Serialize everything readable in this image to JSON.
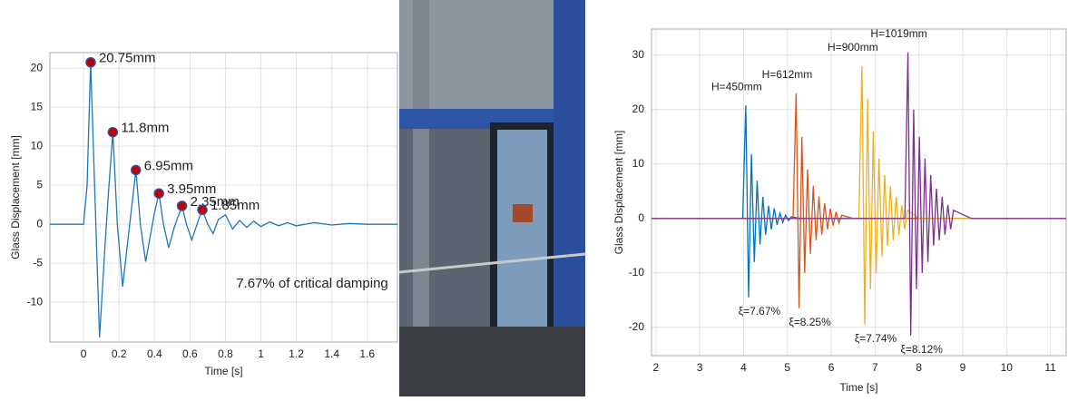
{
  "chart_data": [
    {
      "type": "line",
      "color": "#1f77b4",
      "x": [
        -0.19,
        0,
        0.02,
        0.04,
        0.065,
        0.09,
        0.12,
        0.14,
        0.165,
        0.19,
        0.22,
        0.25,
        0.27,
        0.295,
        0.32,
        0.35,
        0.38,
        0.4,
        0.425,
        0.45,
        0.48,
        0.51,
        0.53,
        0.555,
        0.58,
        0.61,
        0.64,
        0.655,
        0.67,
        0.7,
        0.73,
        0.76,
        0.8,
        0.84,
        0.88,
        0.92,
        0.96,
        1.0,
        1.05,
        1.1,
        1.15,
        1.2,
        1.3,
        1.4,
        1.5,
        1.6,
        1.77
      ],
      "values": [
        0,
        0,
        5,
        20.75,
        3,
        -14.5,
        -3,
        4,
        11.8,
        0,
        -8,
        -2,
        2,
        6.95,
        0,
        -4.8,
        -1,
        1.5,
        3.95,
        0,
        -3,
        -0.5,
        0.8,
        2.35,
        0,
        -2,
        0,
        1,
        1.85,
        0,
        -1.2,
        0.6,
        1.2,
        -0.6,
        0.5,
        -0.4,
        0.4,
        -0.3,
        0.3,
        -0.2,
        0.2,
        -0.2,
        0.2,
        -0.1,
        0.1,
        0,
        0
      ],
      "markers": {
        "color": "#c00000",
        "x": [
          0.04,
          0.165,
          0.295,
          0.425,
          0.555,
          0.67
        ],
        "values": [
          20.75,
          11.8,
          6.95,
          3.95,
          2.35,
          1.85
        ],
        "value_labels": [
          "20.75mm",
          "11.8mm",
          "6.95mm",
          "3.95mm",
          "2.35mm",
          "1.85mm"
        ]
      },
      "annotation": "7.67% of critical damping",
      "xlabel": "Time [s]",
      "ylabel": "Glass Displacement [mm]",
      "xlim": [
        -0.19,
        1.77
      ],
      "ylim": [
        -15.1,
        22
      ],
      "xticks": [
        0,
        0.2,
        0.4,
        0.6,
        0.8,
        1,
        1.2,
        1.4,
        1.6
      ],
      "yticks": [
        -10,
        -5,
        0,
        5,
        10,
        15,
        20
      ],
      "grid": true
    },
    {
      "type": "line",
      "xlabel": "Time [s]",
      "ylabel": "Glass Displacement [mm]",
      "xlim": [
        1.9,
        11.36
      ],
      "ylim": [
        -25.2,
        34.8
      ],
      "xticks": [
        2,
        3,
        4,
        5,
        6,
        7,
        8,
        9,
        10,
        11
      ],
      "yticks": [
        -20,
        -10,
        0,
        10,
        20,
        30
      ],
      "grid": true,
      "series": [
        {
          "name": "H=450mm",
          "damping_label": "ξ=7.67%",
          "color": "#0072bd",
          "x": [
            1.9,
            3.98,
            4.05,
            4.115,
            4.18,
            4.245,
            4.31,
            4.375,
            4.44,
            4.505,
            4.57,
            4.635,
            4.7,
            4.765,
            4.83,
            4.895,
            4.96,
            5.025,
            5.09,
            5.3,
            10.4
          ],
          "values": [
            0,
            0,
            20.75,
            -14.5,
            11.8,
            -8,
            6.95,
            -4.8,
            3.95,
            -3,
            2.35,
            -2,
            1.85,
            -1.2,
            1,
            -0.7,
            0.6,
            -0.4,
            0.3,
            0,
            0
          ]
        },
        {
          "name": "H=612mm",
          "damping_label": "ξ=8.25%",
          "color": "#d95319",
          "x": [
            1.9,
            5.13,
            5.2,
            5.265,
            5.33,
            5.395,
            5.46,
            5.525,
            5.59,
            5.655,
            5.72,
            5.785,
            5.85,
            5.915,
            5.98,
            6.045,
            6.11,
            6.175,
            6.24,
            6.5,
            10.4
          ],
          "values": [
            0,
            0,
            23,
            -16.5,
            15,
            -10,
            9,
            -6.5,
            6,
            -4,
            4,
            -3,
            2.8,
            -2,
            1.8,
            -1.3,
            1.2,
            -0.8,
            0.6,
            0,
            0
          ]
        },
        {
          "name": "H=900mm",
          "damping_label": "ξ=7.74%",
          "color": "#edb120",
          "x": [
            1.9,
            6.63,
            6.7,
            6.765,
            6.83,
            6.895,
            6.96,
            7.025,
            7.09,
            7.155,
            7.22,
            7.285,
            7.35,
            7.415,
            7.48,
            7.545,
            7.61,
            7.675,
            7.74,
            8.0,
            10.4
          ],
          "values": [
            0,
            0,
            28,
            -19.5,
            22,
            -13,
            16,
            -10,
            11,
            -7,
            8,
            -5,
            6,
            -4,
            4,
            -3,
            2.5,
            -2,
            1.5,
            0,
            0
          ]
        },
        {
          "name": "H=1019mm",
          "damping_label": "ξ=8.12%",
          "color": "#7e2f8e",
          "x": [
            1.9,
            7.68,
            7.75,
            7.815,
            7.88,
            7.945,
            8.01,
            8.075,
            8.14,
            8.205,
            8.27,
            8.335,
            8.4,
            8.465,
            8.53,
            8.595,
            8.66,
            8.725,
            8.79,
            9.2,
            11.36
          ],
          "values": [
            0,
            0,
            30.5,
            -21.5,
            20,
            -13,
            15,
            -10,
            11,
            -8,
            8,
            -5,
            5.5,
            -4,
            4,
            -3,
            2.5,
            -2,
            1.5,
            0,
            0
          ]
        }
      ]
    }
  ]
}
